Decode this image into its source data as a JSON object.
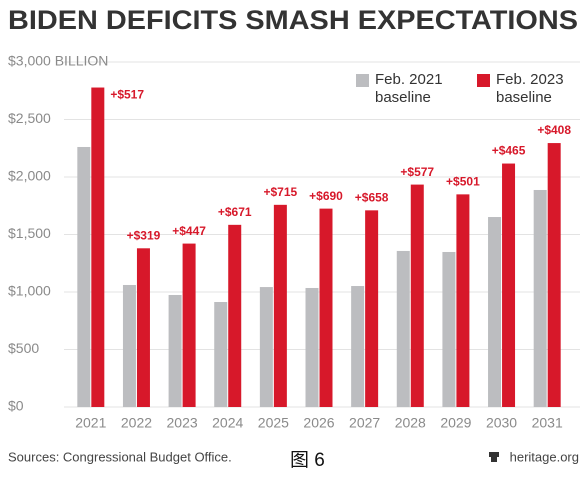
{
  "chart_data": {
    "type": "bar",
    "title": "BIDEN DEFICITS SMASH EXPECTATIONS",
    "categories": [
      "2021",
      "2022",
      "2023",
      "2024",
      "2025",
      "2026",
      "2027",
      "2028",
      "2029",
      "2030",
      "2031"
    ],
    "series": [
      {
        "name": "Feb. 2021 baseline",
        "color": "#bcbdc0",
        "values": [
          2261,
          1061,
          974,
          913,
          1043,
          1035,
          1052,
          1357,
          1348,
          1652,
          1887
        ]
      },
      {
        "name": "Feb. 2023 baseline",
        "color": "#d7182a",
        "values": [
          2778,
          1380,
          1421,
          1584,
          1758,
          1725,
          1710,
          1934,
          1849,
          2117,
          2295
        ]
      }
    ],
    "annotations": [
      "+$517",
      "+$319",
      "+$447",
      "+$671",
      "+$715",
      "+$690",
      "+$658",
      "+$577",
      "+$501",
      "+$465",
      "+$408"
    ],
    "ylim": [
      0,
      3000
    ],
    "yticks": [
      {
        "value": 0,
        "label": "$0"
      },
      {
        "value": 500,
        "label": "$500"
      },
      {
        "value": 1000,
        "label": "$1,000"
      },
      {
        "value": 1500,
        "label": "$1,500"
      },
      {
        "value": 2000,
        "label": "$2,000"
      },
      {
        "value": 2500,
        "label": "$2,500"
      },
      {
        "value": 3000,
        "label": "$3,000 BILLION"
      }
    ],
    "grid": true,
    "legend": "top-right",
    "source": "Sources: Congressional Budget Office.",
    "figure_label": "图 6",
    "credit": "heritage.org"
  }
}
